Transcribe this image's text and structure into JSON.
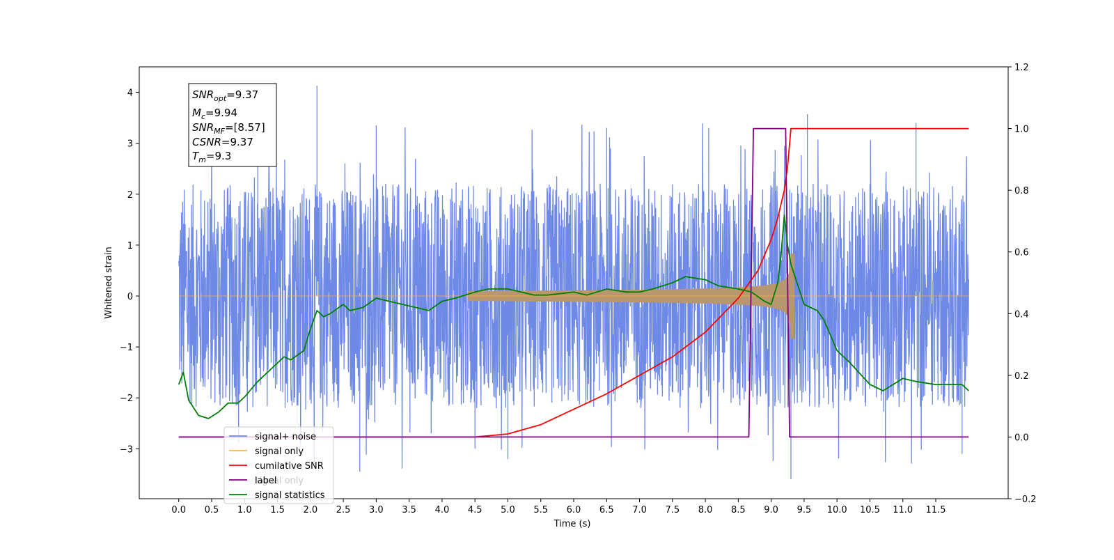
{
  "chart_data": {
    "type": "line",
    "xlabel": "Time (s)",
    "ylabel": "Whitened strain",
    "x_range": [
      0,
      12
    ],
    "xlim": [
      -0.6,
      12.6
    ],
    "ylim": [
      -3.98,
      4.5
    ],
    "y2lim": [
      -0.2,
      1.2
    ],
    "x_ticks": [
      "0.0",
      "0.5",
      "1.0",
      "1.5",
      "2.0",
      "2.5",
      "3.0",
      "3.5",
      "4.0",
      "4.5",
      "5.0",
      "5.5",
      "6.0",
      "6.5",
      "7.0",
      "7.5",
      "8.0",
      "8.5",
      "9.0",
      "9.5",
      "10.0",
      "10.5",
      "11.0",
      "11.5"
    ],
    "y_ticks": [
      "−3",
      "−2",
      "−1",
      "0",
      "1",
      "2",
      "3",
      "4"
    ],
    "y2_ticks": [
      "−0.2",
      "0.0",
      "0.2",
      "0.4",
      "0.6",
      "0.8",
      "1.0",
      "1.2"
    ],
    "grid": false,
    "legend_position": "lower-left",
    "annotation": [
      {
        "sym": "SNR",
        "sub": "opt",
        "val": "=9.37"
      },
      {
        "sym": "M",
        "sub": "c",
        "val": "=9.94"
      },
      {
        "sym": "SNR",
        "sub": "MF",
        "val": "=[8.57]"
      },
      {
        "sym": "CSNR",
        "sub": "",
        "val": "=9.37"
      },
      {
        "sym": "T",
        "sub": "m",
        "val": "=9.3"
      }
    ],
    "series": [
      {
        "name": "signal+ noise",
        "color": "#6f8ae6",
        "axis": "left",
        "noise_band": [
          -2.2,
          2.2
        ],
        "noise_peak_max": 4.13,
        "noise_peak_min": -3.6
      },
      {
        "name": "signal only",
        "color": "#ffb347",
        "axis": "left",
        "chirp_merger_time": 9.3,
        "chirp_peak_amplitude": 1.2
      },
      {
        "name": "cumilative SNR",
        "color": "#ff0000",
        "axis": "right",
        "x": [
          0,
          4.5,
          5.0,
          5.5,
          6.0,
          6.5,
          7.0,
          7.5,
          8.0,
          8.5,
          8.8,
          9.0,
          9.1,
          9.2,
          9.25,
          9.3,
          12.0
        ],
        "y": [
          0,
          0,
          0.01,
          0.04,
          0.09,
          0.14,
          0.2,
          0.26,
          0.34,
          0.45,
          0.54,
          0.64,
          0.71,
          0.8,
          0.88,
          1.0,
          1.0
        ]
      },
      {
        "name": "label",
        "color": "#800080",
        "axis": "right",
        "x": [
          0,
          8.66,
          8.73,
          9.22,
          9.28,
          12.0
        ],
        "y": [
          0,
          0,
          1,
          1,
          0,
          0
        ]
      },
      {
        "name": "signal only",
        "color": "#a9a9a9",
        "axis": "right",
        "hidden": true
      },
      {
        "name": "signal statistics",
        "color": "#008000",
        "axis": "right",
        "x": [
          0,
          0.07,
          0.15,
          0.3,
          0.45,
          0.6,
          0.75,
          0.9,
          1.0,
          1.2,
          1.4,
          1.6,
          1.7,
          1.9,
          2.0,
          2.1,
          2.2,
          2.3,
          2.5,
          2.6,
          2.8,
          3.0,
          3.2,
          3.4,
          3.6,
          3.8,
          4.0,
          4.2,
          4.5,
          4.7,
          5.0,
          5.2,
          5.4,
          5.6,
          6.0,
          6.2,
          6.5,
          6.8,
          7.0,
          7.2,
          7.5,
          7.7,
          8.0,
          8.2,
          8.5,
          8.7,
          8.9,
          9.0,
          9.1,
          9.15,
          9.2,
          9.25,
          9.3,
          9.5,
          9.7,
          9.8,
          10.0,
          10.2,
          10.5,
          10.7,
          11.0,
          11.2,
          11.5,
          11.7,
          11.9,
          12.0
        ],
        "y": [
          0.17,
          0.21,
          0.12,
          0.07,
          0.06,
          0.08,
          0.11,
          0.11,
          0.13,
          0.18,
          0.22,
          0.26,
          0.25,
          0.28,
          0.35,
          0.41,
          0.39,
          0.4,
          0.43,
          0.41,
          0.42,
          0.45,
          0.44,
          0.43,
          0.42,
          0.41,
          0.44,
          0.45,
          0.47,
          0.48,
          0.48,
          0.47,
          0.46,
          0.46,
          0.47,
          0.46,
          0.48,
          0.47,
          0.47,
          0.48,
          0.5,
          0.52,
          0.51,
          0.49,
          0.48,
          0.47,
          0.44,
          0.43,
          0.5,
          0.59,
          0.72,
          0.62,
          0.56,
          0.43,
          0.41,
          0.38,
          0.28,
          0.24,
          0.17,
          0.15,
          0.19,
          0.18,
          0.17,
          0.17,
          0.17,
          0.15
        ]
      }
    ]
  }
}
